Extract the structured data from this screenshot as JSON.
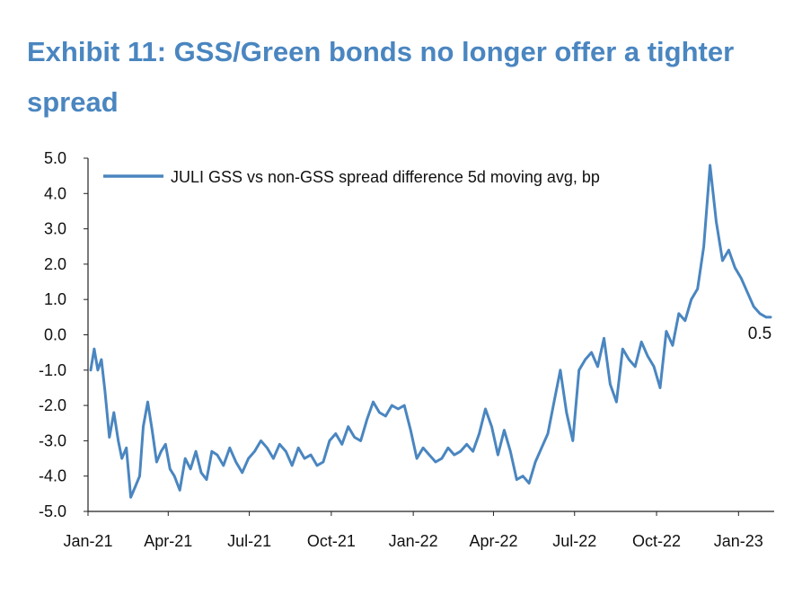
{
  "title": "Exhibit 11: GSS/Green bonds no longer offer a tighter spread",
  "chart_data": {
    "type": "line",
    "ylim": [
      -5.0,
      5.0
    ],
    "y_ticks": [
      "5.0",
      "4.0",
      "3.0",
      "2.0",
      "1.0",
      "0.0",
      "-1.0",
      "-2.0",
      "-3.0",
      "-4.0",
      "-5.0"
    ],
    "x_ticks": [
      "Jan-21",
      "Apr-21",
      "Jul-21",
      "Oct-21",
      "Jan-22",
      "Apr-22",
      "Jul-22",
      "Oct-22",
      "Jan-23"
    ],
    "xlim": [
      "2021-01-01",
      "2023-02-10"
    ],
    "grid": false,
    "legend_position": "top-left",
    "color": "#4a86c0",
    "end_label": "0.5",
    "series": [
      {
        "name": "JULI GSS vs non-GSS spread difference 5d moving avg, bp",
        "x": [
          "2021-01-04",
          "2021-01-08",
          "2021-01-12",
          "2021-01-16",
          "2021-01-20",
          "2021-01-25",
          "2021-01-30",
          "2021-02-04",
          "2021-02-08",
          "2021-02-13",
          "2021-02-18",
          "2021-02-23",
          "2021-02-28",
          "2021-03-04",
          "2021-03-09",
          "2021-03-14",
          "2021-03-19",
          "2021-03-24",
          "2021-03-29",
          "2021-04-03",
          "2021-04-08",
          "2021-04-14",
          "2021-04-20",
          "2021-04-26",
          "2021-05-02",
          "2021-05-08",
          "2021-05-14",
          "2021-05-20",
          "2021-05-26",
          "2021-06-02",
          "2021-06-09",
          "2021-06-16",
          "2021-06-23",
          "2021-06-30",
          "2021-07-07",
          "2021-07-14",
          "2021-07-21",
          "2021-07-28",
          "2021-08-04",
          "2021-08-11",
          "2021-08-18",
          "2021-08-25",
          "2021-09-01",
          "2021-09-08",
          "2021-09-15",
          "2021-09-22",
          "2021-09-29",
          "2021-10-06",
          "2021-10-13",
          "2021-10-20",
          "2021-10-27",
          "2021-11-03",
          "2021-11-10",
          "2021-11-17",
          "2021-11-24",
          "2021-12-01",
          "2021-12-08",
          "2021-12-15",
          "2021-12-22",
          "2021-12-29",
          "2022-01-05",
          "2022-01-12",
          "2022-01-19",
          "2022-01-26",
          "2022-02-02",
          "2022-02-09",
          "2022-02-16",
          "2022-02-23",
          "2022-03-02",
          "2022-03-09",
          "2022-03-16",
          "2022-03-23",
          "2022-03-30",
          "2022-04-06",
          "2022-04-13",
          "2022-04-20",
          "2022-04-27",
          "2022-05-04",
          "2022-05-11",
          "2022-05-18",
          "2022-05-25",
          "2022-06-01",
          "2022-06-08",
          "2022-06-15",
          "2022-06-22",
          "2022-06-29",
          "2022-07-06",
          "2022-07-13",
          "2022-07-20",
          "2022-07-27",
          "2022-08-03",
          "2022-08-10",
          "2022-08-17",
          "2022-08-24",
          "2022-08-31",
          "2022-09-07",
          "2022-09-14",
          "2022-09-21",
          "2022-09-28",
          "2022-10-05",
          "2022-10-12",
          "2022-10-19",
          "2022-10-26",
          "2022-11-02",
          "2022-11-09",
          "2022-11-16",
          "2022-11-23",
          "2022-11-30",
          "2022-12-07",
          "2022-12-14",
          "2022-12-21",
          "2022-12-28",
          "2023-01-04",
          "2023-01-11",
          "2023-01-18",
          "2023-01-25",
          "2023-02-01",
          "2023-02-06"
        ],
        "values": [
          -1.0,
          -0.4,
          -1.0,
          -0.7,
          -1.6,
          -2.9,
          -2.2,
          -3.0,
          -3.5,
          -3.2,
          -4.6,
          -4.3,
          -4.0,
          -2.6,
          -1.9,
          -2.7,
          -3.6,
          -3.3,
          -3.1,
          -3.8,
          -4.0,
          -4.4,
          -3.5,
          -3.8,
          -3.3,
          -3.9,
          -4.1,
          -3.3,
          -3.4,
          -3.7,
          -3.2,
          -3.6,
          -3.9,
          -3.5,
          -3.3,
          -3.0,
          -3.2,
          -3.5,
          -3.1,
          -3.3,
          -3.7,
          -3.2,
          -3.5,
          -3.4,
          -3.7,
          -3.6,
          -3.0,
          -2.8,
          -3.1,
          -2.6,
          -2.9,
          -3.0,
          -2.4,
          -1.9,
          -2.2,
          -2.3,
          -2.0,
          -2.1,
          -2.0,
          -2.7,
          -3.5,
          -3.2,
          -3.4,
          -3.6,
          -3.5,
          -3.2,
          -3.4,
          -3.3,
          -3.1,
          -3.3,
          -2.8,
          -2.1,
          -2.6,
          -3.4,
          -2.7,
          -3.3,
          -4.1,
          -4.0,
          -4.2,
          -3.6,
          -3.2,
          -2.8,
          -1.9,
          -1.0,
          -2.2,
          -3.0,
          -1.0,
          -0.7,
          -0.5,
          -0.9,
          -0.1,
          -1.4,
          -1.9,
          -0.4,
          -0.7,
          -0.9,
          -0.2,
          -0.6,
          -0.9,
          -1.5,
          0.1,
          -0.3,
          0.6,
          0.4,
          1.0,
          1.3,
          2.5,
          4.8,
          3.2,
          2.1,
          2.4,
          1.9,
          1.6,
          1.2,
          0.8,
          0.6,
          0.5,
          0.5
        ]
      }
    ]
  }
}
